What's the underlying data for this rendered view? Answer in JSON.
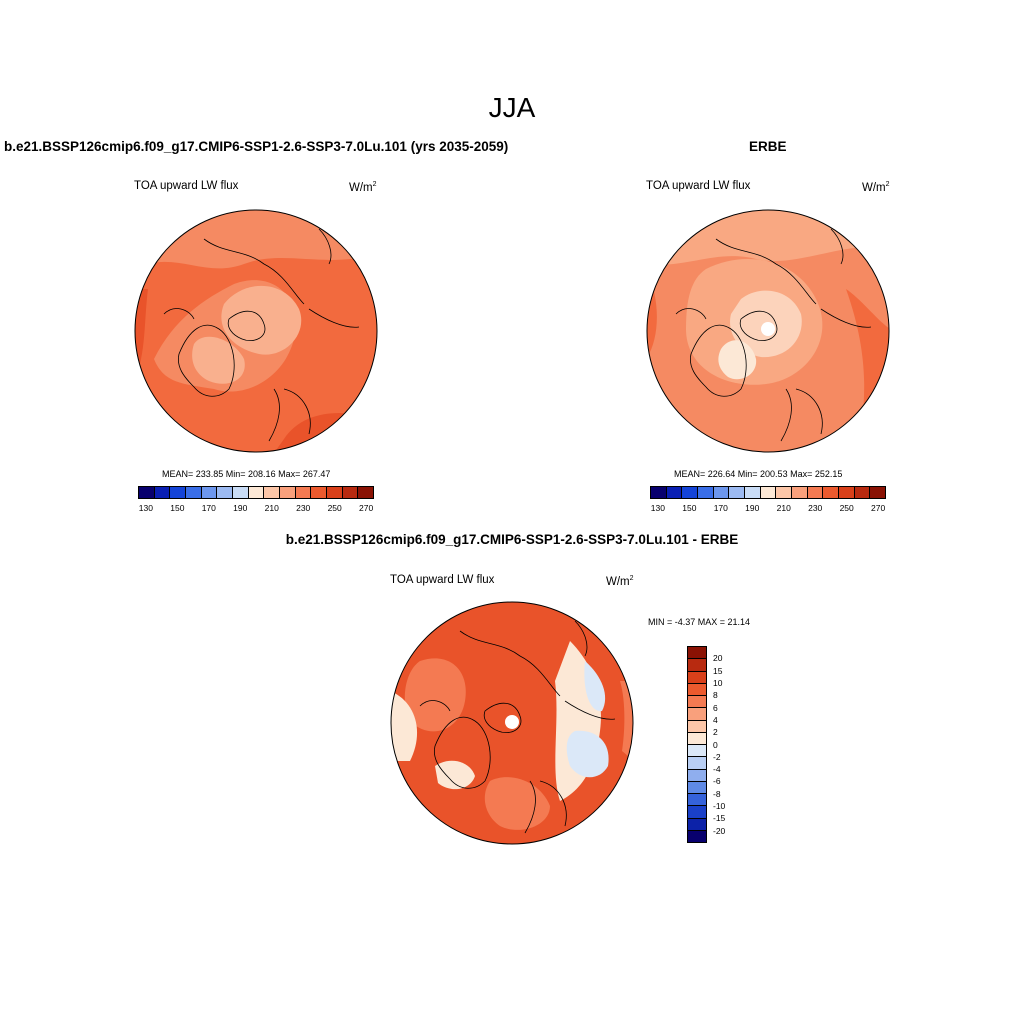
{
  "title": "JJA",
  "panels": {
    "model": {
      "title": "b.e21.BSSP126cmip6.f09_g17.CMIP6-SSP1-2.6-SSP3-7.0Lu.101 (yrs 2035-2059)",
      "variable": "TOA upward LW flux",
      "units_base": "W/m",
      "units_sup": "2",
      "stats": "MEAN= 233.85  Min= 208.16  Max= 267.47"
    },
    "obs": {
      "title": "ERBE",
      "variable": "TOA upward LW flux",
      "units_base": "W/m",
      "units_sup": "2",
      "stats": "MEAN= 226.64  Min= 200.53  Max= 252.15"
    },
    "diff": {
      "title": "b.e21.BSSP126cmip6.f09_g17.CMIP6-SSP1-2.6-SSP3-7.0Lu.101 - ERBE",
      "variable": "TOA upward LW flux",
      "units_base": "W/m",
      "units_sup": "2",
      "stats": "MIN =  -4.37 MAX =  21.14"
    }
  },
  "colorbar_abs": {
    "tick_labels": [
      "130",
      "150",
      "170",
      "190",
      "210",
      "230",
      "250",
      "270"
    ],
    "colors": [
      "#08006e",
      "#0a1fb4",
      "#1444d8",
      "#3a6ee8",
      "#6d97ee",
      "#9cbaf2",
      "#c9dcf6",
      "#fce8d6",
      "#fcc6a8",
      "#f9a07c",
      "#f47a52",
      "#ec5a2e",
      "#d9401a",
      "#b82a10",
      "#8a1204"
    ]
  },
  "colorbar_diff": {
    "tick_labels": [
      "20",
      "15",
      "10",
      "8",
      "6",
      "4",
      "2",
      "0",
      "-2",
      "-4",
      "-6",
      "-8",
      "-10",
      "-15",
      "-20"
    ],
    "colors": [
      "#8a1204",
      "#b82a10",
      "#d9401a",
      "#ec5a2e",
      "#f47a52",
      "#f9a07c",
      "#fcc6a8",
      "#fce8d6",
      "#dbe8f8",
      "#b9cff4",
      "#8faeee",
      "#5f8ae6",
      "#3562da",
      "#1a40c8",
      "#0c22a8",
      "#08006e"
    ]
  },
  "map_colors": {
    "model": {
      "base": "#f26a3e",
      "mid": "#f58a62",
      "light": "#f9b08e"
    },
    "obs": {
      "base": "#f58a62",
      "mid": "#f9a882",
      "light": "#fcd3bb"
    },
    "diff": {
      "base": "#e9532a",
      "mid": "#f47a52",
      "light": "#fce8d6",
      "cool": "#dbe8f8"
    }
  }
}
